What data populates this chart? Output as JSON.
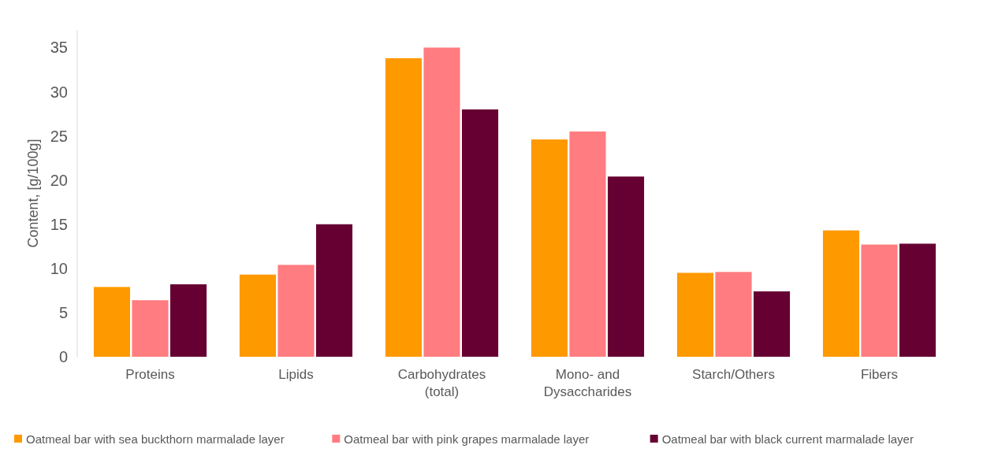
{
  "chart_data": {
    "type": "bar",
    "ylabel": "Content, [g/100g]",
    "categories": [
      "Proteins",
      "Lipids",
      "Carbohydrates (total)",
      "Mono- and Dysaccharides",
      "Starch/Others",
      "Fibers"
    ],
    "series": [
      {
        "name": "Oatmeal bar with sea buckthorn marmalade layer",
        "color": "#ff9900",
        "values": [
          7.9,
          9.3,
          33.8,
          24.6,
          9.5,
          14.3
        ]
      },
      {
        "name": "Oatmeal bar with pink grapes marmalade layer",
        "color": "#ff7c80",
        "values": [
          6.4,
          10.4,
          35,
          25.5,
          9.6,
          12.7
        ]
      },
      {
        "name": "Oatmeal bar with black current marmalade layer",
        "color": "#660033",
        "values": [
          8.2,
          15,
          28,
          20.4,
          7.4,
          12.8
        ]
      }
    ],
    "ylim": [
      0,
      37
    ],
    "yticks": [
      0,
      5,
      10,
      15,
      20,
      25,
      30,
      35
    ],
    "grid": false,
    "legend": "bottom"
  }
}
